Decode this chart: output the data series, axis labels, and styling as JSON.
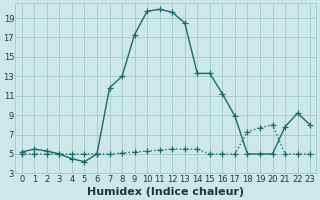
{
  "xlabel": "Humidex (Indice chaleur)",
  "ylabel": "",
  "background_color": "#cde8e8",
  "grid_color": "#aacccc",
  "line_color": "#1a6b6b",
  "xlim": [
    -0.5,
    23.5
  ],
  "ylim": [
    3,
    20.5
  ],
  "xticks": [
    0,
    1,
    2,
    3,
    4,
    5,
    6,
    7,
    8,
    9,
    10,
    11,
    12,
    13,
    14,
    15,
    16,
    17,
    18,
    19,
    20,
    21,
    22,
    23
  ],
  "yticks": [
    3,
    5,
    7,
    9,
    11,
    13,
    15,
    17,
    19
  ],
  "curve1_x": [
    0,
    1,
    2,
    3,
    4,
    5,
    6,
    7,
    8,
    9,
    10,
    11,
    12,
    13,
    14,
    15,
    16,
    17,
    18,
    19,
    20,
    21,
    22,
    23
  ],
  "curve1_y": [
    5.2,
    5.5,
    5.3,
    5.0,
    4.5,
    4.2,
    5.0,
    11.8,
    13.0,
    17.3,
    19.7,
    19.9,
    19.6,
    18.5,
    13.3,
    13.3,
    11.2,
    8.9,
    5.0,
    5.0,
    5.0,
    7.8,
    9.2,
    8.0
  ],
  "curve2_x": [
    0,
    1,
    2,
    3,
    4,
    5,
    6,
    7,
    8,
    9,
    10,
    11,
    12,
    13,
    14,
    15,
    16,
    17,
    18,
    19,
    20,
    21,
    22,
    23
  ],
  "curve2_y": [
    5.0,
    5.0,
    5.0,
    5.0,
    5.0,
    5.0,
    5.0,
    5.0,
    5.1,
    5.2,
    5.3,
    5.4,
    5.5,
    5.5,
    5.5,
    5.0,
    5.0,
    5.0,
    7.3,
    7.7,
    8.0,
    5.0,
    5.0,
    5.0
  ],
  "fontsize_label": 7,
  "fontsize_tick": 6,
  "marker_size": 3,
  "linewidth": 1.0
}
